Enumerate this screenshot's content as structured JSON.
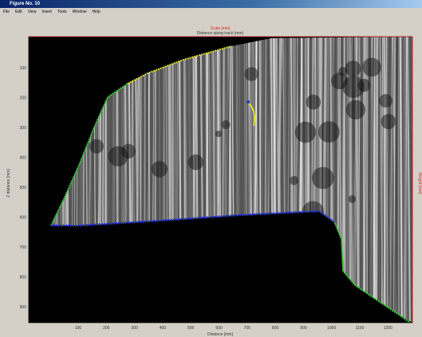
{
  "window": {
    "title": "Figure No. 10",
    "menu": [
      "File",
      "Edit",
      "View",
      "Insert",
      "Tools",
      "Window",
      "Help"
    ]
  },
  "axes": {
    "top_label": "Scale [mm]",
    "subtitle": "Distance along track (mm)",
    "y_label": "Z distance [mm]",
    "x_label": "Distance [mm]",
    "right_label": "Height [mm]",
    "x_ticks": [
      100,
      200,
      300,
      400,
      500,
      600,
      700,
      800,
      900,
      1000,
      1100,
      1200
    ],
    "y_ticks": [
      100,
      200,
      300,
      400,
      500,
      600,
      700,
      800,
      900
    ]
  }
}
